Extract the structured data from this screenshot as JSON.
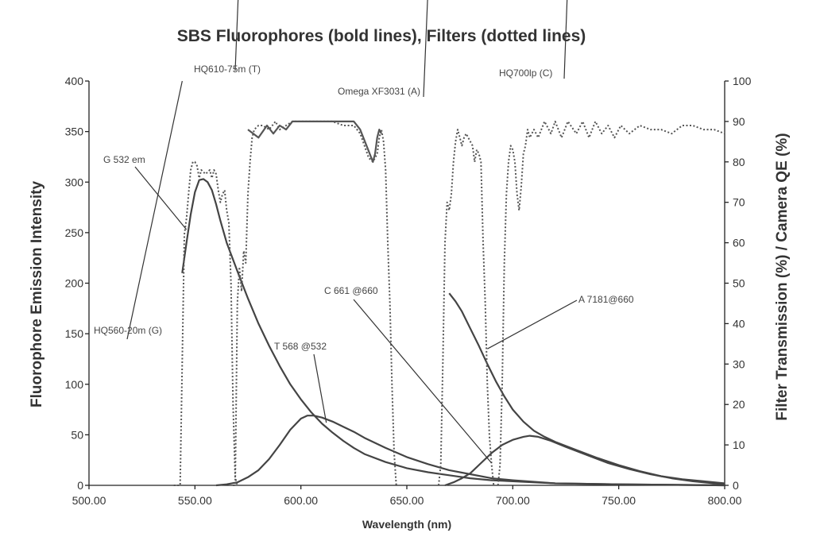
{
  "chart_data": {
    "type": "line",
    "title": "SBS Fluorophores (bold lines), Filters (dotted lines)",
    "xlabel": "Wavelength (nm)",
    "ylabel": "Fluorophore Emission Intensity",
    "y2label": "Filter Transmission (%) / Camera QE (%)",
    "xlim": [
      500,
      800
    ],
    "ylim": [
      0,
      400
    ],
    "y2lim": [
      0,
      100
    ],
    "x_ticks": [
      "500.00",
      "550.00",
      "600.00",
      "650.00",
      "700.00",
      "750.00",
      "800.00"
    ],
    "y_ticks": [
      "0",
      "50",
      "100",
      "150",
      "200",
      "250",
      "300",
      "350",
      "400"
    ],
    "y2_ticks": [
      "0",
      "10",
      "20",
      "30",
      "40",
      "50",
      "60",
      "70",
      "80",
      "90",
      "100"
    ],
    "grid": false,
    "series": [
      {
        "name": "G 532 em",
        "kind": "fluorophore",
        "axis": "left",
        "points": [
          [
            544,
            210
          ],
          [
            546,
            240
          ],
          [
            548,
            268
          ],
          [
            550,
            290
          ],
          [
            552,
            302
          ],
          [
            554,
            303
          ],
          [
            556,
            300
          ],
          [
            558,
            292
          ],
          [
            560,
            278
          ],
          [
            562,
            262
          ],
          [
            565,
            240
          ],
          [
            570,
            212
          ],
          [
            575,
            185
          ],
          [
            580,
            160
          ],
          [
            585,
            138
          ],
          [
            590,
            118
          ],
          [
            595,
            100
          ],
          [
            600,
            85
          ],
          [
            605,
            72
          ],
          [
            610,
            61
          ],
          [
            615,
            52
          ],
          [
            620,
            44
          ],
          [
            625,
            37
          ],
          [
            630,
            31
          ],
          [
            640,
            23
          ],
          [
            650,
            17
          ],
          [
            660,
            13
          ],
          [
            670,
            10
          ],
          [
            680,
            7
          ],
          [
            690,
            5
          ],
          [
            700,
            4
          ],
          [
            720,
            2
          ],
          [
            750,
            1
          ],
          [
            800,
            0
          ]
        ]
      },
      {
        "name": "T 568 @532",
        "kind": "fluorophore",
        "axis": "left",
        "points": [
          [
            560,
            0
          ],
          [
            565,
            1
          ],
          [
            570,
            3
          ],
          [
            575,
            8
          ],
          [
            580,
            15
          ],
          [
            585,
            26
          ],
          [
            590,
            40
          ],
          [
            595,
            55
          ],
          [
            600,
            66
          ],
          [
            603,
            69
          ],
          [
            606,
            69
          ],
          [
            610,
            67
          ],
          [
            615,
            63
          ],
          [
            620,
            58
          ],
          [
            625,
            53
          ],
          [
            630,
            47
          ],
          [
            640,
            37
          ],
          [
            650,
            28
          ],
          [
            660,
            21
          ],
          [
            670,
            15
          ],
          [
            680,
            11
          ],
          [
            690,
            7
          ],
          [
            700,
            5
          ],
          [
            720,
            2
          ],
          [
            750,
            1
          ],
          [
            800,
            0
          ]
        ]
      },
      {
        "name": "C 661 @660",
        "kind": "fluorophore",
        "axis": "left",
        "points": [
          [
            668,
            0
          ],
          [
            672,
            3
          ],
          [
            676,
            7
          ],
          [
            680,
            12
          ],
          [
            685,
            22
          ],
          [
            690,
            32
          ],
          [
            695,
            40
          ],
          [
            700,
            45
          ],
          [
            705,
            48
          ],
          [
            708,
            49
          ],
          [
            712,
            48
          ],
          [
            718,
            44
          ],
          [
            725,
            38
          ],
          [
            735,
            30
          ],
          [
            745,
            22
          ],
          [
            755,
            16
          ],
          [
            765,
            11
          ],
          [
            775,
            7
          ],
          [
            785,
            4
          ],
          [
            795,
            2
          ],
          [
            800,
            1
          ]
        ]
      },
      {
        "name": "A 7181@660",
        "kind": "fluorophore",
        "axis": "left",
        "points": [
          [
            670,
            190
          ],
          [
            673,
            182
          ],
          [
            676,
            172
          ],
          [
            680,
            155
          ],
          [
            684,
            138
          ],
          [
            688,
            120
          ],
          [
            692,
            103
          ],
          [
            696,
            88
          ],
          [
            700,
            75
          ],
          [
            705,
            63
          ],
          [
            710,
            54
          ],
          [
            715,
            48
          ],
          [
            720,
            43
          ],
          [
            730,
            35
          ],
          [
            740,
            27
          ],
          [
            750,
            20
          ],
          [
            760,
            14
          ],
          [
            770,
            9
          ],
          [
            780,
            6
          ],
          [
            790,
            4
          ],
          [
            800,
            2
          ]
        ]
      },
      {
        "name": "HQ560-20m (G)",
        "kind": "filter",
        "axis": "right",
        "points": [
          [
            540,
            0
          ],
          [
            543,
            0
          ],
          [
            544,
            30
          ],
          [
            545,
            62
          ],
          [
            546,
            66
          ],
          [
            547,
            72
          ],
          [
            548,
            78
          ],
          [
            549,
            80
          ],
          [
            550,
            80
          ],
          [
            551,
            79
          ],
          [
            552,
            76
          ],
          [
            553,
            78
          ],
          [
            555,
            77
          ],
          [
            557,
            78
          ],
          [
            558,
            76
          ],
          [
            559,
            78
          ],
          [
            560,
            77
          ],
          [
            561,
            73
          ],
          [
            562,
            70
          ],
          [
            563,
            72
          ],
          [
            564,
            73
          ],
          [
            565,
            68
          ],
          [
            566,
            65
          ],
          [
            567,
            50
          ],
          [
            568,
            20
          ],
          [
            569,
            2
          ],
          [
            570,
            0
          ]
        ]
      },
      {
        "name": "HQ610-75m (T)",
        "kind": "filter",
        "axis": "right",
        "points": [
          [
            568,
            0
          ],
          [
            569,
            0
          ],
          [
            570,
            45
          ],
          [
            571,
            54
          ],
          [
            572,
            48
          ],
          [
            573,
            58
          ],
          [
            574,
            55
          ],
          [
            575,
            72
          ],
          [
            576,
            80
          ],
          [
            577,
            86
          ],
          [
            578,
            88
          ],
          [
            580,
            89
          ],
          [
            582,
            89
          ],
          [
            585,
            88
          ],
          [
            588,
            90
          ],
          [
            590,
            88
          ],
          [
            593,
            89
          ],
          [
            596,
            90
          ],
          [
            600,
            90
          ],
          [
            605,
            90
          ],
          [
            610,
            90
          ],
          [
            615,
            90
          ],
          [
            620,
            89
          ],
          [
            625,
            89
          ],
          [
            628,
            87
          ],
          [
            630,
            84
          ],
          [
            632,
            81
          ],
          [
            634,
            80
          ],
          [
            636,
            82
          ],
          [
            637,
            86
          ],
          [
            638,
            88
          ],
          [
            639,
            85
          ],
          [
            640,
            78
          ],
          [
            641,
            60
          ],
          [
            642,
            45
          ],
          [
            643,
            25
          ],
          [
            644,
            8
          ],
          [
            645,
            0
          ]
        ]
      },
      {
        "name": "Omega XF3031 (A)",
        "kind": "filter",
        "axis": "right",
        "points": [
          [
            665,
            0
          ],
          [
            666,
            5
          ],
          [
            667,
            30
          ],
          [
            668,
            60
          ],
          [
            669,
            70
          ],
          [
            670,
            68
          ],
          [
            671,
            72
          ],
          [
            672,
            80
          ],
          [
            673,
            85
          ],
          [
            674,
            88
          ],
          [
            675,
            86
          ],
          [
            676,
            84
          ],
          [
            677,
            86
          ],
          [
            678,
            87
          ],
          [
            679,
            86
          ],
          [
            680,
            85
          ],
          [
            681,
            84
          ],
          [
            682,
            80
          ],
          [
            683,
            83
          ],
          [
            684,
            82
          ],
          [
            685,
            80
          ],
          [
            686,
            60
          ],
          [
            687,
            45
          ],
          [
            688,
            25
          ],
          [
            689,
            12
          ],
          [
            690,
            5
          ],
          [
            691,
            0
          ]
        ]
      },
      {
        "name": "HQ700lp (C)",
        "kind": "filter",
        "axis": "right",
        "points": [
          [
            693,
            0
          ],
          [
            694,
            5
          ],
          [
            695,
            25
          ],
          [
            696,
            55
          ],
          [
            697,
            72
          ],
          [
            698,
            80
          ],
          [
            699,
            84
          ],
          [
            700,
            83
          ],
          [
            701,
            80
          ],
          [
            702,
            72
          ],
          [
            703,
            68
          ],
          [
            704,
            74
          ],
          [
            705,
            82
          ],
          [
            706,
            84
          ],
          [
            707,
            88
          ],
          [
            708,
            86
          ],
          [
            710,
            88
          ],
          [
            712,
            86
          ],
          [
            715,
            90
          ],
          [
            718,
            87
          ],
          [
            720,
            90
          ],
          [
            723,
            86
          ],
          [
            726,
            90
          ],
          [
            730,
            87
          ],
          [
            733,
            90
          ],
          [
            736,
            86
          ],
          [
            739,
            90
          ],
          [
            742,
            87
          ],
          [
            745,
            89
          ],
          [
            748,
            86
          ],
          [
            751,
            89
          ],
          [
            755,
            87
          ],
          [
            760,
            89
          ],
          [
            765,
            88
          ],
          [
            770,
            88
          ],
          [
            775,
            87
          ],
          [
            780,
            89
          ],
          [
            785,
            89
          ],
          [
            790,
            88
          ],
          [
            795,
            88
          ],
          [
            800,
            87
          ]
        ]
      },
      {
        "name": "",
        "kind": "camera-qe",
        "axis": "right",
        "points": [
          [
            575,
            88
          ],
          [
            580,
            86
          ],
          [
            584,
            89
          ],
          [
            587,
            87
          ],
          [
            590,
            89
          ],
          [
            593,
            88
          ],
          [
            596,
            90
          ],
          [
            600,
            90
          ],
          [
            620,
            90
          ],
          [
            625,
            90
          ],
          [
            628,
            88
          ],
          [
            631,
            84
          ],
          [
            634,
            80
          ],
          [
            635,
            82
          ],
          [
            636,
            86
          ],
          [
            637,
            88
          ],
          [
            638,
            87
          ]
        ]
      }
    ],
    "annotations": [
      {
        "text": "HQ610-75m (T)",
        "anchor_series": "HQ610-75m (T)",
        "x": 588,
        "y": 348
      },
      {
        "text": "Omega XF3031 (A)",
        "anchor_series": "Omega XF3031 (A)",
        "x": 678,
        "y": 350
      },
      {
        "text": "HQ700lp (C)",
        "anchor_series": "HQ700lp (C)",
        "x": 742,
        "y": 352
      },
      {
        "text": "G 532 em",
        "anchor_series": "G 532 em",
        "x": 546,
        "y": 253
      },
      {
        "text": "HQ560-20m (G)",
        "anchor_series": "HQ560-20m (G)",
        "x": 544,
        "y": 100
      },
      {
        "text": "C 661 @660",
        "anchor_series": "C 661 @660",
        "x": 690,
        "y": 22
      },
      {
        "text": "A 7181@660",
        "anchor_series": "A 7181@660",
        "x": 688,
        "y": 135
      },
      {
        "text": "T 568 @532",
        "anchor_series": "T 568 @532",
        "x": 612,
        "y": 62
      }
    ]
  }
}
